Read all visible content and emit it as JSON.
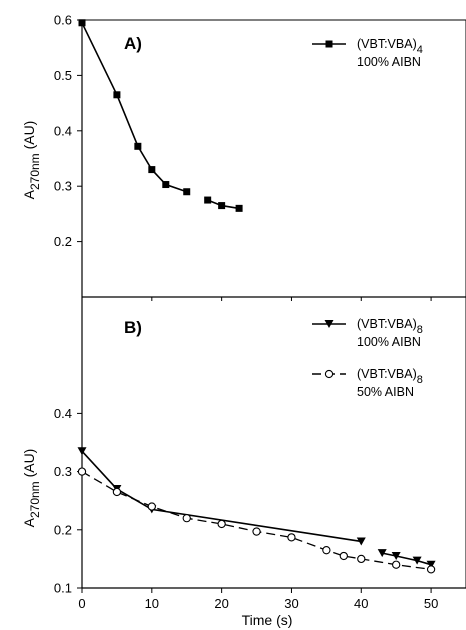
{
  "chart_data": [
    {
      "panel": "A)",
      "type": "line",
      "xlim": [
        0,
        55
      ],
      "ylim": [
        0.1,
        0.6
      ],
      "yticks": [
        "0.2",
        "0.3",
        "0.4",
        "0.5",
        "0.6"
      ],
      "ylabel_main": "A",
      "ylabel_sub": "270nm",
      "ylabel_unit": " (AU)",
      "grid": false,
      "legend_position": "top-right",
      "series": [
        {
          "name_main": "(VBT:VBA)",
          "name_sub": "4",
          "name_line2": "100% AIBN",
          "marker": "square",
          "line_style": "solid",
          "segments": [
            [
              [
                0,
                0.595
              ],
              [
                5,
                0.465
              ],
              [
                8,
                0.372
              ],
              [
                10,
                0.33
              ],
              [
                12,
                0.303
              ],
              [
                15,
                0.29
              ]
            ],
            [
              [
                18,
                0.275
              ],
              [
                20,
                0.265
              ],
              [
                22.5,
                0.26
              ]
            ]
          ]
        }
      ]
    },
    {
      "panel": "B)",
      "type": "line",
      "xlim": [
        0,
        55
      ],
      "ylim": [
        0.1,
        0.6
      ],
      "yticks": [
        "0.1",
        "0.2",
        "0.3",
        "0.4"
      ],
      "xticks": [
        "0",
        "10",
        "20",
        "30",
        "40",
        "50"
      ],
      "xlabel": "Time (s)",
      "ylabel_main": "A",
      "ylabel_sub": "270nm",
      "ylabel_unit": " (AU)",
      "grid": false,
      "legend_position": "top-right",
      "series": [
        {
          "name_main": "(VBT:VBA)",
          "name_sub": "8",
          "name_line2": "100% AIBN",
          "marker": "triangle-down",
          "line_style": "solid",
          "segments": [
            [
              [
                0,
                0.335
              ],
              [
                5,
                0.27
              ],
              [
                10,
                0.235
              ],
              [
                40,
                0.18
              ]
            ],
            [
              [
                43,
                0.16
              ],
              [
                45,
                0.155
              ],
              [
                48,
                0.147
              ],
              [
                50,
                0.14
              ]
            ]
          ]
        },
        {
          "name_main": "(VBT:VBA)",
          "name_sub": "8",
          "name_line2": "50% AIBN",
          "marker": "circle-open",
          "line_style": "dashed",
          "segments": [
            [
              [
                0,
                0.3
              ],
              [
                5,
                0.265
              ],
              [
                10,
                0.24
              ],
              [
                15,
                0.22
              ],
              [
                20,
                0.21
              ],
              [
                25,
                0.197
              ],
              [
                30,
                0.187
              ],
              [
                35,
                0.165
              ],
              [
                37.5,
                0.155
              ],
              [
                40,
                0.15
              ],
              [
                45,
                0.14
              ],
              [
                50,
                0.132
              ]
            ]
          ]
        }
      ]
    }
  ]
}
